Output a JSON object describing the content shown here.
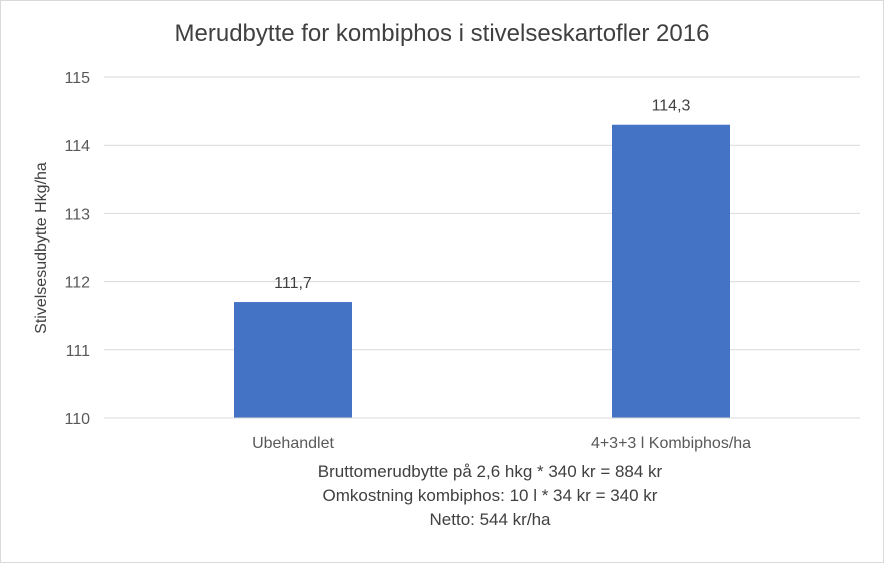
{
  "chart_data": {
    "type": "bar",
    "title": "Merudbytte for kombiphos i stivelseskartofler 2016",
    "xlabel": "",
    "ylabel": "Stivelsesudbytte Hkg/ha",
    "categories": [
      "Ubehandlet",
      "4+3+3 l Kombiphos/ha"
    ],
    "values": [
      111.7,
      114.3
    ],
    "data_labels": [
      "111,7",
      "114,3"
    ],
    "ylim": [
      110,
      115
    ],
    "yticks": [
      110,
      111,
      112,
      113,
      114,
      115
    ],
    "ytick_labels": [
      "110",
      "111",
      "112",
      "113",
      "114",
      "115"
    ],
    "grid": true,
    "legend": "none",
    "bar_color": "#4472c4"
  },
  "notes": [
    "Bruttomerudbytte på 2,6 hkg * 340 kr = 884 kr",
    "Omkostning kombiphos: 10 l * 34 kr = 340 kr",
    "Netto: 544 kr/ha"
  ]
}
